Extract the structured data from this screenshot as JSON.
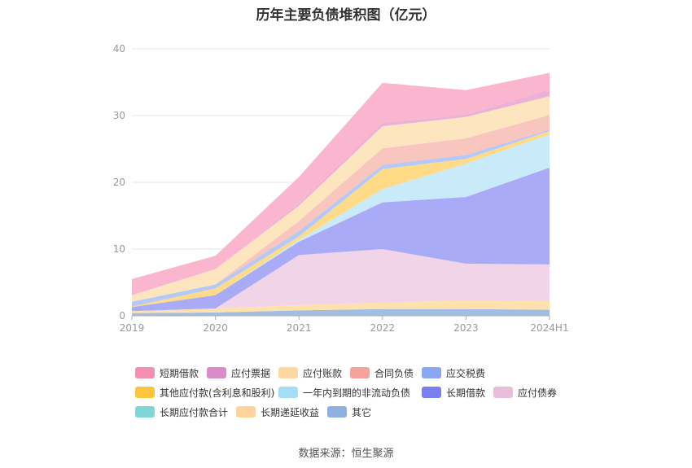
{
  "chart_data": {
    "type": "area",
    "stacked": true,
    "title": "历年主要负债堆积图（亿元）",
    "categories": [
      "2019",
      "2020",
      "2021",
      "2022",
      "2023",
      "2024H1"
    ],
    "ylim": [
      0,
      40
    ],
    "yticks": [
      0,
      10,
      20,
      30,
      40
    ],
    "grid": true,
    "legend_position": "bottom",
    "series": [
      {
        "name": "其它",
        "color": "#8fb1df",
        "values": [
          0.4,
          0.5,
          0.8,
          1.0,
          1.0,
          0.9
        ]
      },
      {
        "name": "长期递延收益",
        "color": "#ffdca0",
        "values": [
          0.3,
          0.6,
          0.8,
          1.0,
          1.3,
          1.3
        ]
      },
      {
        "name": "长期应付款合计",
        "color": "#8dd8d8",
        "values": [
          0,
          0,
          0,
          0,
          0,
          0
        ]
      },
      {
        "name": "应付债券",
        "color": "#efcde3",
        "values": [
          0,
          0,
          7.5,
          8.0,
          5.5,
          5.5
        ]
      },
      {
        "name": "长期借款",
        "color": "#9a9cf4",
        "values": [
          0.6,
          2.0,
          2.0,
          7.0,
          10.0,
          14.5
        ]
      },
      {
        "name": "一年内到期的非流动负债",
        "color": "#bfe6f8",
        "values": [
          0,
          0,
          0.3,
          2.0,
          5.0,
          5.0
        ]
      },
      {
        "name": "其他应付款(含利息和股利)",
        "color": "#ffd372",
        "values": [
          0.1,
          1.0,
          0.5,
          3.0,
          0.7,
          0.5
        ]
      },
      {
        "name": "应交税费",
        "color": "#a7bff6",
        "values": [
          0.7,
          0.6,
          0.8,
          0.6,
          0.6,
          0.2
        ]
      },
      {
        "name": "合同负债",
        "color": "#f8bcb4",
        "values": [
          0,
          0,
          1.5,
          2.5,
          2.5,
          2.2
        ]
      },
      {
        "name": "应付账款",
        "color": "#fde0b5",
        "values": [
          1.0,
          2.3,
          2.3,
          3.3,
          3.2,
          2.8
        ]
      },
      {
        "name": "应付票据",
        "color": "#e8a3cf",
        "values": [
          0,
          0,
          0.3,
          0.5,
          0.3,
          1.0
        ]
      },
      {
        "name": "短期借款",
        "color": "#f9a9c6",
        "values": [
          2.4,
          2.0,
          4.0,
          6.0,
          3.7,
          2.5
        ]
      }
    ]
  },
  "legend": [
    {
      "name": "短期借款",
      "color": "#f48fb1"
    },
    {
      "name": "应付票据",
      "color": "#d98cc7"
    },
    {
      "name": "应付账款",
      "color": "#fdd8a0"
    },
    {
      "name": "合同负债",
      "color": "#f4a39a"
    },
    {
      "name": "应交税费",
      "color": "#8aa8f0"
    },
    {
      "name": "其他应付款(含利息和股利)",
      "color": "#ffc43d"
    },
    {
      "name": "一年内到期的非流动负债",
      "color": "#a6ddf6"
    },
    {
      "name": "长期借款",
      "color": "#7b7ff0"
    },
    {
      "name": "应付债券",
      "color": "#e8bedb"
    },
    {
      "name": "长期应付款合计",
      "color": "#7fd6d6"
    },
    {
      "name": "长期递延收益",
      "color": "#ffd49a"
    },
    {
      "name": "其它",
      "color": "#8fb1df"
    }
  ],
  "source": "数据来源：恒生聚源"
}
